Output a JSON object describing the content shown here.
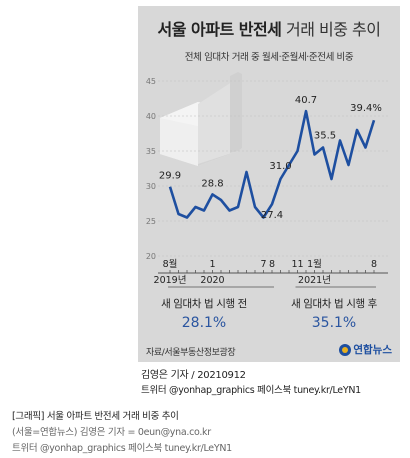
{
  "card": {
    "title_bold": "서울 아파트 반전세",
    "title_light": "거래 비중 추이",
    "subtitle": "전체 임대차 거래 중 월세·준월세·준전세 비중",
    "before_label": "새 임대차 법 시행 전",
    "before_value": "28.1%",
    "after_label": "새 임대차 법 시행 후",
    "after_value": "35.1%",
    "source": "자료/서울부동산정보광장",
    "logo": "연합뉴스"
  },
  "credits": {
    "author": "김영은 기자 / 20210912",
    "social": "트위터 @yonhap_graphics  페이스북 tuney.kr/LeYN1"
  },
  "caption": {
    "line1": "[그래픽] 서울 아파트 반전세 거래 비중 추이",
    "line2": "(서울=연합뉴스) 김영은 기자 = 0eun@yna.co.kr",
    "line3": "트위터 @yonhap_graphics 페이스북 tuney.kr/LeYN1"
  },
  "chart_data": {
    "type": "line",
    "title": "서울 아파트 반전세 거래 비중 추이",
    "subtitle": "전체 임대차 거래 중 월세·준월세·준전세 비중",
    "ylim": [
      20,
      45
    ],
    "yticks": [
      20,
      25,
      30,
      35,
      40,
      45
    ],
    "grid": true,
    "series_color": "#1e4fa0",
    "x_labels": [
      "2019-08",
      "2019-09",
      "2019-10",
      "2019-11",
      "2019-12",
      "2020-01",
      "2020-02",
      "2020-03",
      "2020-04",
      "2020-05",
      "2020-06",
      "2020-07",
      "2020-08",
      "2020-09",
      "2020-10",
      "2020-11",
      "2020-12",
      "2021-01",
      "2021-02",
      "2021-03",
      "2021-04",
      "2021-05",
      "2021-06",
      "2021-07",
      "2021-08"
    ],
    "values": [
      29.9,
      26.0,
      25.5,
      27.0,
      26.5,
      28.8,
      28.0,
      26.5,
      27.0,
      32.0,
      27.0,
      25.5,
      27.4,
      31.0,
      33.0,
      35.0,
      40.7,
      34.5,
      35.5,
      31.0,
      36.5,
      33.0,
      38.0,
      35.5,
      39.4
    ],
    "data_labels": [
      {
        "index": 0,
        "text": "29.9"
      },
      {
        "index": 5,
        "text": "28.8"
      },
      {
        "index": 12,
        "text": "27.4"
      },
      {
        "index": 13,
        "text": "31.0"
      },
      {
        "index": 16,
        "text": "40.7"
      },
      {
        "index": 18,
        "text": "35.5"
      },
      {
        "index": 24,
        "text": "39.4%"
      }
    ],
    "x_tick_labels": [
      {
        "index": 0,
        "month": "8월",
        "year": "2019년"
      },
      {
        "index": 5,
        "month": "1",
        "year": "2020"
      },
      {
        "index": 11,
        "month": "7",
        "year": ""
      },
      {
        "index": 12,
        "month": "8",
        "year": ""
      },
      {
        "index": 15,
        "month": "11",
        "year": ""
      },
      {
        "index": 17,
        "month": "1월",
        "year": "2021년"
      },
      {
        "index": 24,
        "month": "8",
        "year": ""
      }
    ]
  }
}
